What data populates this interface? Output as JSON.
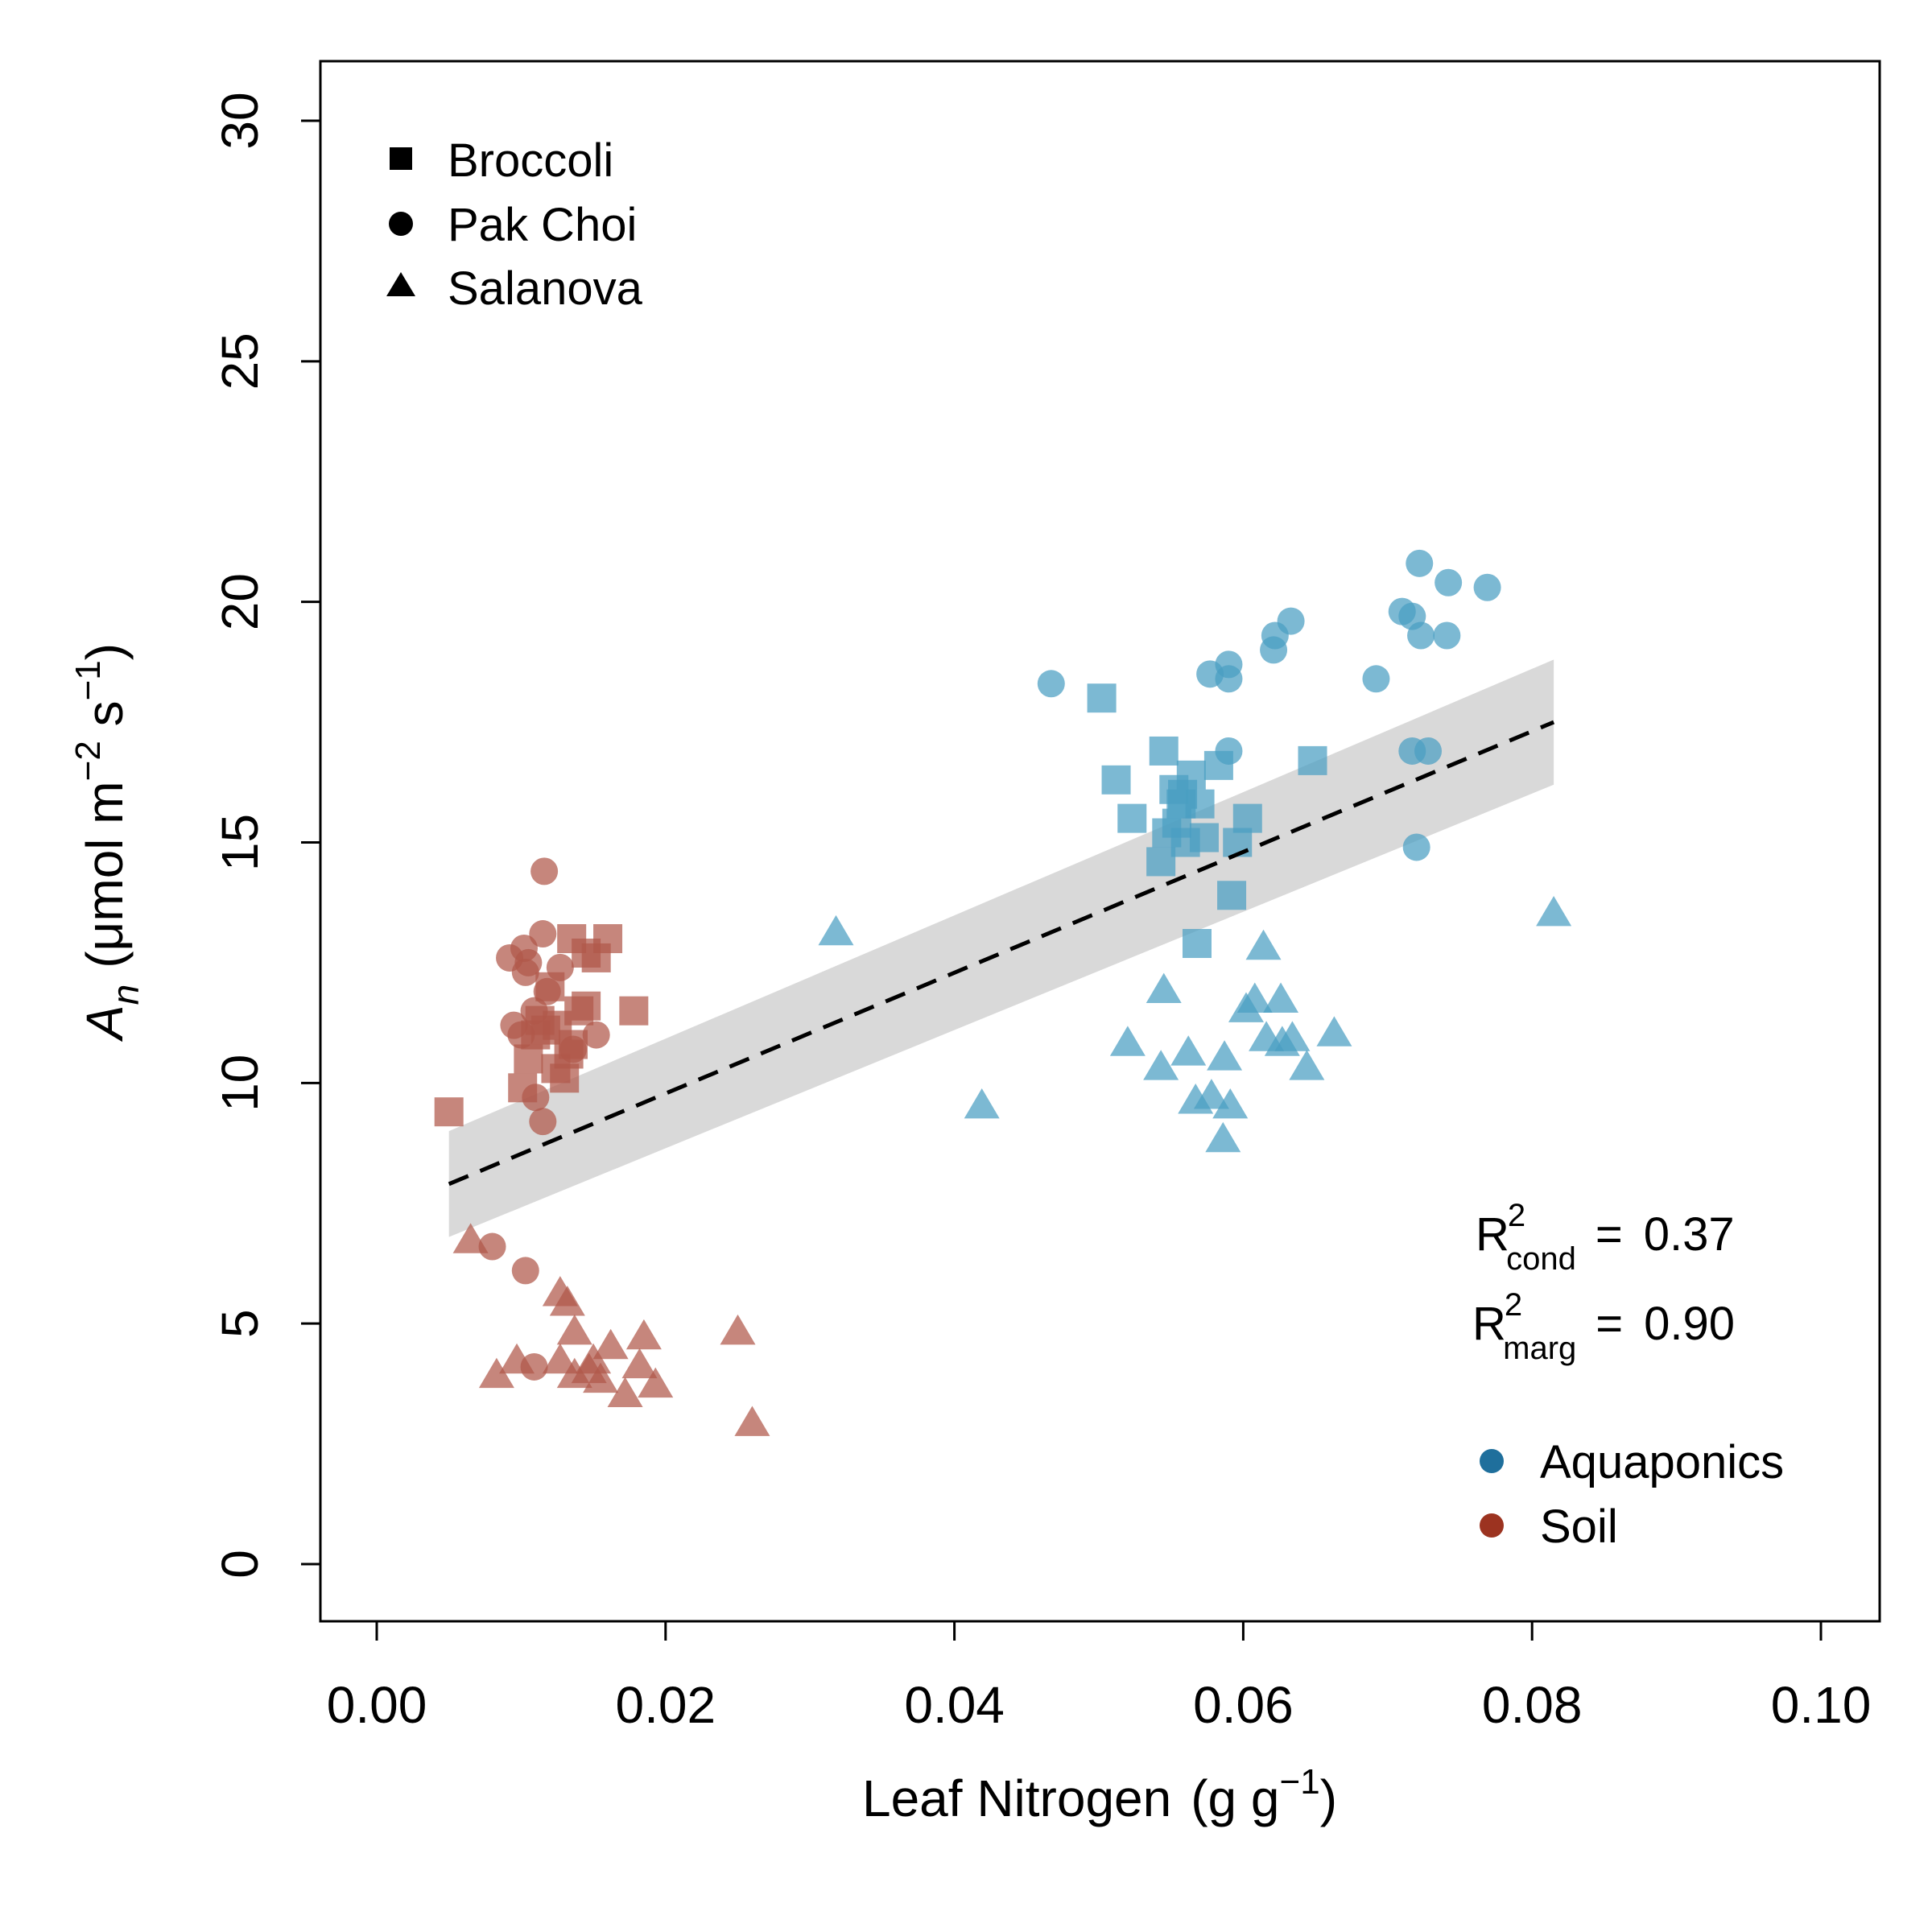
{
  "chart_data": {
    "type": "scatter",
    "xlabel_main": "Leaf Nitrogen",
    "xlabel_unit_open": "(g g",
    "xlabel_unit_sup": "−1",
    "xlabel_unit_close": ")",
    "ylabel_A": "A",
    "ylabel_A_sub": "n",
    "ylabel_unit_open": "(μmol m",
    "ylabel_unit_sup1": "−2",
    "ylabel_unit_mid": " s",
    "ylabel_unit_sup2": "−1",
    "ylabel_unit_close": ")",
    "xlim": [
      0,
      0.1
    ],
    "ylim": [
      0,
      30
    ],
    "xticks": [
      "0.00",
      "0.02",
      "0.04",
      "0.06",
      "0.08",
      "0.10"
    ],
    "yticks": [
      "0",
      "5",
      "10",
      "15",
      "20",
      "25",
      "30"
    ],
    "shape_legend": {
      "placement": "top-left",
      "items": [
        {
          "shape": "square",
          "label": "Broccoli"
        },
        {
          "shape": "circle",
          "label": "Pak Choi"
        },
        {
          "shape": "triangle",
          "label": "Salanova"
        }
      ]
    },
    "color_legend": {
      "placement": "bottom-right",
      "items": [
        {
          "color": "#1f6f9c",
          "label": "Aquaponics"
        },
        {
          "color": "#9c3320",
          "label": "Soil"
        }
      ]
    },
    "stats": [
      {
        "R": "R",
        "sup": "2",
        "sub": "cond",
        "eq": "=",
        "value": "0.37"
      },
      {
        "R": "R",
        "sup": "2",
        "sub": "marg",
        "eq": "=",
        "value": "0.90"
      }
    ],
    "colors": {
      "aquaponics": "#4a9ec2",
      "soil": "#b0584a",
      "ribbon": "#d9d9d9",
      "fit_line": "#000000"
    },
    "fit": {
      "style": "dashed",
      "x": [
        0.005,
        0.0815
      ],
      "y": [
        7.9,
        17.5
      ],
      "ci_lower": [
        6.8,
        16.2
      ],
      "ci_upper": [
        9.0,
        18.8
      ]
    },
    "series": [
      {
        "group": "Aquaponics",
        "crop": "Broccoli",
        "shape": "square",
        "points": [
          [
            0.0502,
            18.0
          ],
          [
            0.0512,
            16.3
          ],
          [
            0.0523,
            15.5
          ],
          [
            0.0545,
            16.9
          ],
          [
            0.0552,
            16.1
          ],
          [
            0.0558,
            16.0
          ],
          [
            0.0564,
            16.4
          ],
          [
            0.0554,
            15.4
          ],
          [
            0.0547,
            15.2
          ],
          [
            0.057,
            15.8
          ],
          [
            0.056,
            15.0
          ],
          [
            0.0543,
            14.6
          ],
          [
            0.0583,
            16.6
          ],
          [
            0.0603,
            15.5
          ],
          [
            0.0596,
            15.0
          ],
          [
            0.0592,
            13.9
          ],
          [
            0.0568,
            12.9
          ],
          [
            0.0648,
            16.7
          ],
          [
            0.0557,
            15.8
          ],
          [
            0.0573,
            15.1
          ]
        ]
      },
      {
        "group": "Aquaponics",
        "crop": "Pak Choi",
        "shape": "circle",
        "points": [
          [
            0.0467,
            18.3
          ],
          [
            0.0577,
            18.5
          ],
          [
            0.059,
            18.7
          ],
          [
            0.059,
            18.4
          ],
          [
            0.0622,
            19.3
          ],
          [
            0.0621,
            19.0
          ],
          [
            0.0633,
            19.6
          ],
          [
            0.059,
            16.9
          ],
          [
            0.0692,
            18.4
          ],
          [
            0.071,
            19.8
          ],
          [
            0.0717,
            19.7
          ],
          [
            0.0723,
            19.3
          ],
          [
            0.0722,
            20.8
          ],
          [
            0.0742,
            20.4
          ],
          [
            0.0741,
            19.3
          ],
          [
            0.0769,
            20.3
          ],
          [
            0.0717,
            16.9
          ],
          [
            0.0728,
            16.9
          ],
          [
            0.072,
            14.9
          ]
        ]
      },
      {
        "group": "Aquaponics",
        "crop": "Salanova",
        "shape": "triangle",
        "points": [
          [
            0.0318,
            13.1
          ],
          [
            0.0419,
            9.5
          ],
          [
            0.052,
            10.8
          ],
          [
            0.0545,
            11.9
          ],
          [
            0.0543,
            10.3
          ],
          [
            0.0562,
            10.6
          ],
          [
            0.0567,
            9.6
          ],
          [
            0.0578,
            9.7
          ],
          [
            0.0587,
            10.5
          ],
          [
            0.0591,
            9.5
          ],
          [
            0.0586,
            8.8
          ],
          [
            0.0602,
            11.5
          ],
          [
            0.0608,
            11.7
          ],
          [
            0.0614,
            12.8
          ],
          [
            0.0616,
            10.9
          ],
          [
            0.0626,
            11.7
          ],
          [
            0.0634,
            10.9
          ],
          [
            0.0644,
            10.3
          ],
          [
            0.0663,
            11.0
          ],
          [
            0.0815,
            13.5
          ],
          [
            0.0627,
            10.8
          ]
        ]
      },
      {
        "group": "Soil",
        "crop": "Broccoli",
        "shape": "square",
        "points": [
          [
            0.005,
            9.4
          ],
          [
            0.0101,
            9.9
          ],
          [
            0.0105,
            10.5
          ],
          [
            0.011,
            11.0
          ],
          [
            0.0113,
            11.3
          ],
          [
            0.0117,
            11.1
          ],
          [
            0.012,
            12.0
          ],
          [
            0.0125,
            11.2
          ],
          [
            0.013,
            10.1
          ],
          [
            0.0133,
            10.6
          ],
          [
            0.0136,
            10.8
          ],
          [
            0.014,
            11.5
          ],
          [
            0.0145,
            11.6
          ],
          [
            0.0135,
            13.0
          ],
          [
            0.0145,
            12.7
          ],
          [
            0.0152,
            12.6
          ],
          [
            0.016,
            13.0
          ],
          [
            0.0178,
            11.5
          ],
          [
            0.0124,
            10.3
          ]
        ]
      },
      {
        "group": "Soil",
        "crop": "Pak Choi",
        "shape": "circle",
        "points": [
          [
            0.0092,
            12.6
          ],
          [
            0.0102,
            12.8
          ],
          [
            0.0105,
            12.5
          ],
          [
            0.0103,
            12.3
          ],
          [
            0.0116,
            14.4
          ],
          [
            0.0115,
            13.1
          ],
          [
            0.0118,
            11.9
          ],
          [
            0.0109,
            11.5
          ],
          [
            0.01,
            11.0
          ],
          [
            0.0095,
            11.2
          ],
          [
            0.0127,
            12.4
          ],
          [
            0.0136,
            10.7
          ],
          [
            0.011,
            9.7
          ],
          [
            0.0115,
            9.2
          ],
          [
            0.0152,
            11.0
          ],
          [
            0.008,
            6.6
          ],
          [
            0.0103,
            6.1
          ],
          [
            0.0109,
            4.1
          ]
        ]
      },
      {
        "group": "Soil",
        "crop": "Salanova",
        "shape": "triangle",
        "points": [
          [
            0.0065,
            6.7
          ],
          [
            0.0083,
            3.9
          ],
          [
            0.0097,
            4.2
          ],
          [
            0.0127,
            4.2
          ],
          [
            0.0127,
            5.6
          ],
          [
            0.0132,
            5.4
          ],
          [
            0.0137,
            4.8
          ],
          [
            0.0137,
            3.9
          ],
          [
            0.0147,
            4.0
          ],
          [
            0.015,
            4.2
          ],
          [
            0.0155,
            3.8
          ],
          [
            0.0162,
            4.5
          ],
          [
            0.0172,
            3.5
          ],
          [
            0.0182,
            4.1
          ],
          [
            0.0185,
            4.7
          ],
          [
            0.0193,
            3.7
          ],
          [
            0.025,
            4.8
          ],
          [
            0.026,
            2.9
          ]
        ]
      }
    ]
  }
}
